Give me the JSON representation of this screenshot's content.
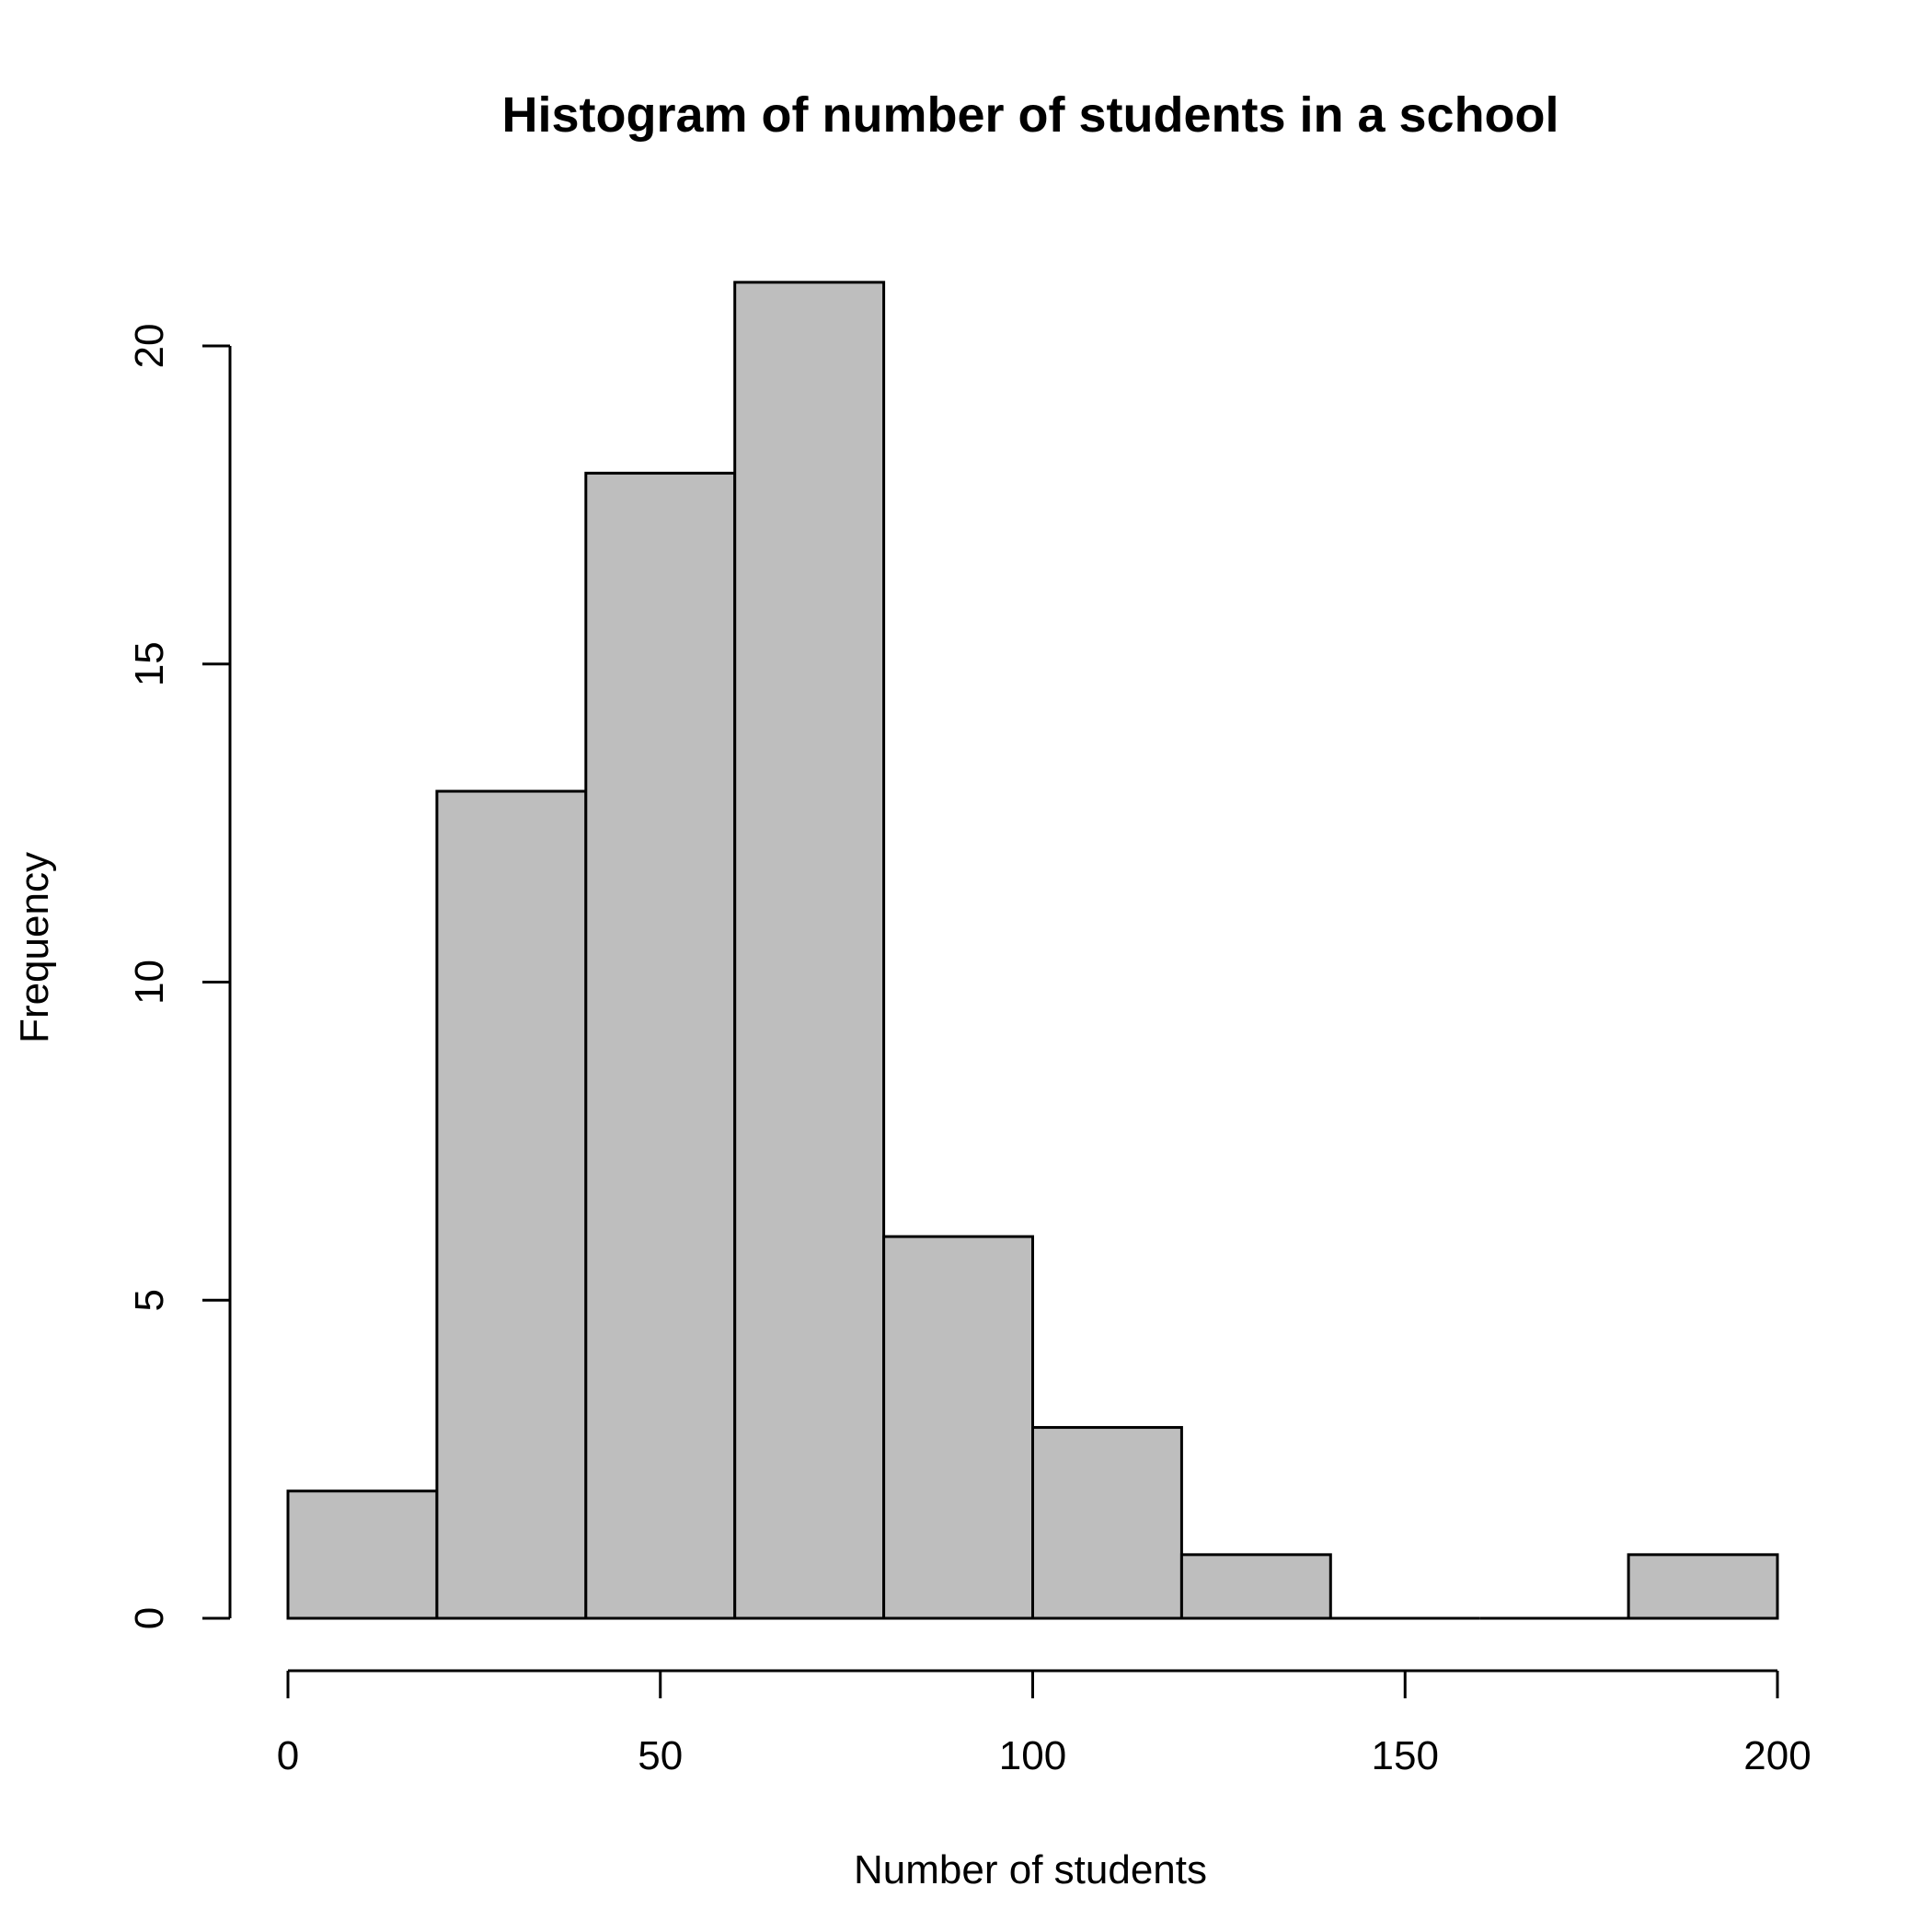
{
  "chart_data": {
    "type": "histogram",
    "title": "Histogram of number of students in a school",
    "xlabel": "Number of students",
    "ylabel": "Frequency",
    "bins": [
      {
        "from": 0,
        "to": 20,
        "count": 2
      },
      {
        "from": 20,
        "to": 40,
        "count": 13
      },
      {
        "from": 40,
        "to": 60,
        "count": 18
      },
      {
        "from": 60,
        "to": 80,
        "count": 21
      },
      {
        "from": 80,
        "to": 100,
        "count": 6
      },
      {
        "from": 100,
        "to": 120,
        "count": 3
      },
      {
        "from": 120,
        "to": 140,
        "count": 1
      },
      {
        "from": 140,
        "to": 160,
        "count": 0
      },
      {
        "from": 160,
        "to": 180,
        "count": 0
      },
      {
        "from": 180,
        "to": 200,
        "count": 1
      }
    ],
    "x_ticks": [
      "0",
      "50",
      "100",
      "150",
      "200"
    ],
    "y_ticks": [
      "0",
      "5",
      "10",
      "15",
      "20"
    ],
    "xlim": [
      0,
      200
    ],
    "ylim": [
      0,
      21
    ],
    "bar_fill": "#bebebe",
    "bar_stroke": "#000000",
    "grid": false,
    "legend": "none"
  }
}
